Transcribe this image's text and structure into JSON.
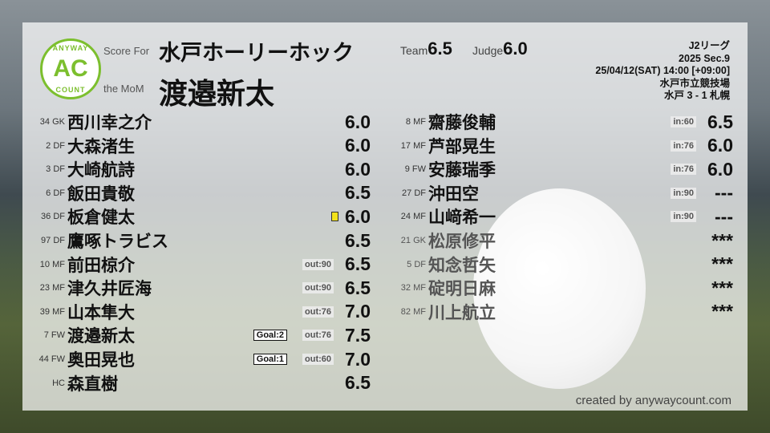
{
  "header": {
    "logo_top": "ANYWAY",
    "logo_mid": "AC",
    "logo_bottom": "COUNT",
    "score_for_label": "Score For",
    "team": "水戸ホーリーホック",
    "mom_label": "the MoM",
    "mom": "渡邉新太",
    "team_label": "Team",
    "team_score": "6.5",
    "judge_label": "Judge",
    "judge_score": "6.0"
  },
  "match": {
    "league": "J2リーグ",
    "section": "2025 Sec.9",
    "datetime": "25/04/12(SAT) 14:00 [+09:00]",
    "venue": "水戸市立競技場",
    "result": "水戸 3 - 1 札幌"
  },
  "left_players": [
    {
      "num": "34",
      "pos": "GK",
      "name": "西川幸之介",
      "score": "6.0"
    },
    {
      "num": "2",
      "pos": "DF",
      "name": "大森渚生",
      "score": "6.0"
    },
    {
      "num": "3",
      "pos": "DF",
      "name": "大崎航詩",
      "score": "6.0"
    },
    {
      "num": "6",
      "pos": "DF",
      "name": "飯田貴敬",
      "score": "6.5"
    },
    {
      "num": "36",
      "pos": "DF",
      "name": "板倉健太",
      "score": "6.0",
      "yellow_card": true
    },
    {
      "num": "97",
      "pos": "DF",
      "name": "鷹啄トラビス",
      "score": "6.5"
    },
    {
      "num": "10",
      "pos": "MF",
      "name": "前田椋介",
      "score": "6.5",
      "sub": "out:90"
    },
    {
      "num": "23",
      "pos": "MF",
      "name": "津久井匠海",
      "score": "6.5",
      "sub": "out:90"
    },
    {
      "num": "39",
      "pos": "MF",
      "name": "山本隼大",
      "score": "7.0",
      "sub": "out:76"
    },
    {
      "num": "7",
      "pos": "FW",
      "name": "渡邉新太",
      "score": "7.5",
      "sub": "out:76",
      "goal": "Goal:2"
    },
    {
      "num": "44",
      "pos": "FW",
      "name": "奥田晃也",
      "score": "7.0",
      "sub": "out:60",
      "goal": "Goal:1"
    },
    {
      "num": "",
      "pos": "HC",
      "name": "森直樹",
      "score": "6.5"
    }
  ],
  "right_players": [
    {
      "num": "8",
      "pos": "MF",
      "name": "齋藤俊輔",
      "score": "6.5",
      "sub": "in:60"
    },
    {
      "num": "17",
      "pos": "MF",
      "name": "芦部晃生",
      "score": "6.0",
      "sub": "in:76"
    },
    {
      "num": "9",
      "pos": "FW",
      "name": "安藤瑞季",
      "score": "6.0",
      "sub": "in:76"
    },
    {
      "num": "27",
      "pos": "DF",
      "name": "沖田空",
      "score": "---",
      "sub": "in:90"
    },
    {
      "num": "24",
      "pos": "MF",
      "name": "山﨑希一",
      "score": "---",
      "sub": "in:90"
    },
    {
      "num": "21",
      "pos": "GK",
      "name": "松原修平",
      "score": "***",
      "dim": true
    },
    {
      "num": "5",
      "pos": "DF",
      "name": "知念哲矢",
      "score": "***",
      "dim": true
    },
    {
      "num": "32",
      "pos": "MF",
      "name": "碇明日麻",
      "score": "***",
      "dim": true
    },
    {
      "num": "82",
      "pos": "MF",
      "name": "川上航立",
      "score": "***",
      "dim": true
    }
  ],
  "footer": {
    "credit": "created by anywaycount.com"
  },
  "colors": {
    "logo": "#7cbf2e",
    "yellow_card": "#f2e21a"
  }
}
